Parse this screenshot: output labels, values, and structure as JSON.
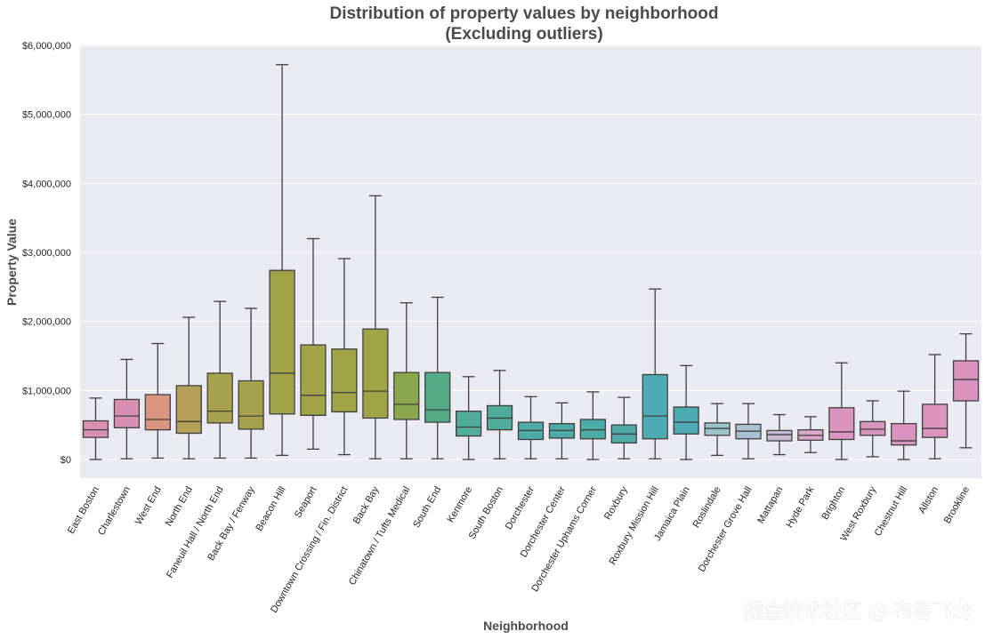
{
  "chart_data": {
    "type": "box",
    "title": "Distribution of property values by neighborhood",
    "subtitle": "(Excluding outliers)",
    "xlabel": "Neighborhood",
    "ylabel": "Property Value",
    "ylim": [
      -270000,
      6000000
    ],
    "yticks": [
      0,
      1000000,
      2000000,
      3000000,
      4000000,
      5000000,
      6000000
    ],
    "ytick_labels": [
      "$0",
      "$1,000,000",
      "$2,000,000",
      "$3,000,000",
      "$4,000,000",
      "$5,000,000",
      "$6,000,000"
    ],
    "grid": true,
    "background": "#eaeaf2",
    "categories": [
      {
        "name": "East Boston",
        "color": "#d98fb2",
        "whisker_low": 0,
        "q1": 320000,
        "median": 430000,
        "q3": 560000,
        "whisker_high": 890000
      },
      {
        "name": "Charlestown",
        "color": "#d98fb2",
        "whisker_low": 10000,
        "q1": 460000,
        "median": 630000,
        "q3": 870000,
        "whisker_high": 1450000
      },
      {
        "name": "West End",
        "color": "#d9957d",
        "whisker_low": 20000,
        "q1": 430000,
        "median": 580000,
        "q3": 940000,
        "whisker_high": 1680000
      },
      {
        "name": "North End",
        "color": "#b49f56",
        "whisker_low": 10000,
        "q1": 380000,
        "median": 550000,
        "q3": 1070000,
        "whisker_high": 2060000
      },
      {
        "name": "Faneuil Hall / North End",
        "color": "#a8a14b",
        "whisker_low": 20000,
        "q1": 530000,
        "median": 700000,
        "q3": 1250000,
        "whisker_high": 2290000
      },
      {
        "name": "Back Bay / Fenway",
        "color": "#a8a14b",
        "whisker_low": 20000,
        "q1": 440000,
        "median": 630000,
        "q3": 1140000,
        "whisker_high": 2190000
      },
      {
        "name": "Beacon Hill",
        "color": "#a0a447",
        "whisker_low": 60000,
        "q1": 660000,
        "median": 1250000,
        "q3": 2740000,
        "whisker_high": 5720000
      },
      {
        "name": "Seaport",
        "color": "#a0a447",
        "whisker_low": 150000,
        "q1": 640000,
        "median": 930000,
        "q3": 1660000,
        "whisker_high": 3200000
      },
      {
        "name": "Downtown Crossing / Fin. District",
        "color": "#a0a447",
        "whisker_low": 70000,
        "q1": 690000,
        "median": 970000,
        "q3": 1600000,
        "whisker_high": 2910000
      },
      {
        "name": "Back Bay",
        "color": "#a0a447",
        "whisker_low": 10000,
        "q1": 600000,
        "median": 990000,
        "q3": 1890000,
        "whisker_high": 3820000
      },
      {
        "name": "Chinatown / Tufts Medical",
        "color": "#8aa74e",
        "whisker_low": 10000,
        "q1": 580000,
        "median": 800000,
        "q3": 1260000,
        "whisker_high": 2270000
      },
      {
        "name": "South End",
        "color": "#52ab86",
        "whisker_low": 10000,
        "q1": 540000,
        "median": 720000,
        "q3": 1260000,
        "whisker_high": 2350000
      },
      {
        "name": "Kenmore",
        "color": "#4fac9b",
        "whisker_low": 0,
        "q1": 340000,
        "median": 470000,
        "q3": 700000,
        "whisker_high": 1200000
      },
      {
        "name": "South Boston",
        "color": "#4fac9b",
        "whisker_low": 10000,
        "q1": 430000,
        "median": 600000,
        "q3": 780000,
        "whisker_high": 1290000
      },
      {
        "name": "Dorchester",
        "color": "#4eaaa7",
        "whisker_low": 10000,
        "q1": 290000,
        "median": 420000,
        "q3": 540000,
        "whisker_high": 910000
      },
      {
        "name": "Dorchester Center",
        "color": "#4eaaa7",
        "whisker_low": 10000,
        "q1": 310000,
        "median": 420000,
        "q3": 520000,
        "whisker_high": 820000
      },
      {
        "name": "Dorchester Uphams Corner",
        "color": "#4eaaa7",
        "whisker_low": 0,
        "q1": 300000,
        "median": 430000,
        "q3": 580000,
        "whisker_high": 980000
      },
      {
        "name": "Roxbury",
        "color": "#4eaaa7",
        "whisker_low": 10000,
        "q1": 240000,
        "median": 370000,
        "q3": 500000,
        "whisker_high": 900000
      },
      {
        "name": "Roxbury Mission Hill",
        "color": "#4eaab2",
        "whisker_low": 10000,
        "q1": 300000,
        "median": 630000,
        "q3": 1230000,
        "whisker_high": 2470000
      },
      {
        "name": "Jamaica Plain",
        "color": "#4eaab2",
        "whisker_low": 0,
        "q1": 370000,
        "median": 540000,
        "q3": 760000,
        "whisker_high": 1360000
      },
      {
        "name": "Roslindale",
        "color": "#9cc3c8",
        "whisker_low": 60000,
        "q1": 350000,
        "median": 450000,
        "q3": 530000,
        "whisker_high": 810000
      },
      {
        "name": "Dorchester Grove Hall",
        "color": "#a9bfd2",
        "whisker_low": 10000,
        "q1": 300000,
        "median": 410000,
        "q3": 510000,
        "whisker_high": 810000
      },
      {
        "name": "Mattapan",
        "color": "#c9b9d6",
        "whisker_low": 70000,
        "q1": 270000,
        "median": 360000,
        "q3": 420000,
        "whisker_high": 650000
      },
      {
        "name": "Hyde Park",
        "color": "#d9a9c9",
        "whisker_low": 100000,
        "q1": 280000,
        "median": 350000,
        "q3": 430000,
        "whisker_high": 620000
      },
      {
        "name": "Brighton",
        "color": "#d995bf",
        "whisker_low": 0,
        "q1": 290000,
        "median": 400000,
        "q3": 750000,
        "whisker_high": 1400000
      },
      {
        "name": "West Roxbury",
        "color": "#d995bf",
        "whisker_low": 40000,
        "q1": 350000,
        "median": 440000,
        "q3": 550000,
        "whisker_high": 850000
      },
      {
        "name": "Chestnut Hill",
        "color": "#d995bf",
        "whisker_low": 0,
        "q1": 210000,
        "median": 270000,
        "q3": 520000,
        "whisker_high": 990000
      },
      {
        "name": "Allston",
        "color": "#d995bf",
        "whisker_low": 10000,
        "q1": 320000,
        "median": 450000,
        "q3": 800000,
        "whisker_high": 1520000
      },
      {
        "name": "Brookline",
        "color": "#d995bf",
        "whisker_low": 170000,
        "q1": 850000,
        "median": 1160000,
        "q3": 1430000,
        "whisker_high": 1820000
      }
    ]
  },
  "watermark": "掘金技术社区 @ 布客飞龙"
}
